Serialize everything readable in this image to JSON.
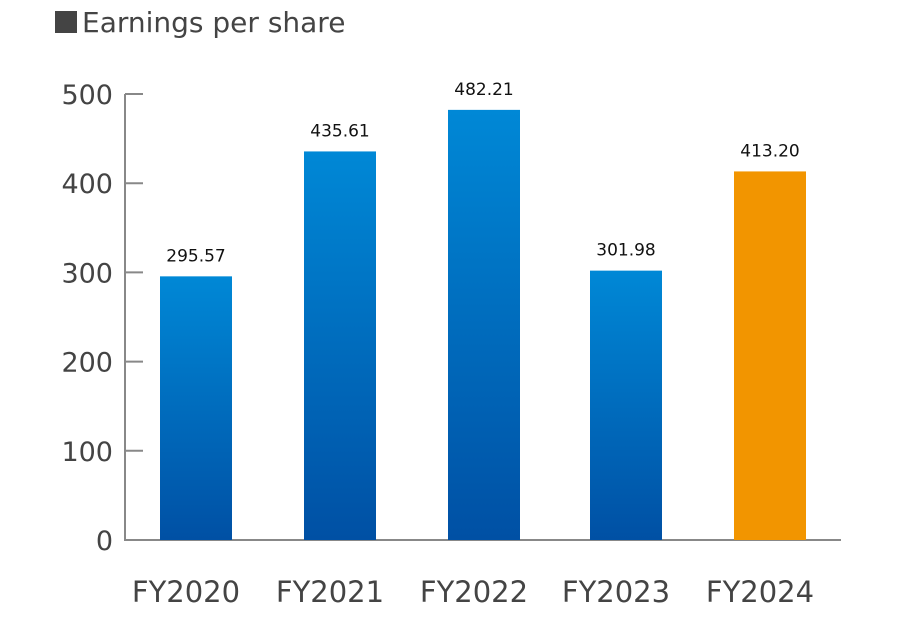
{
  "chart_data": {
    "type": "bar",
    "title": "Earnings per share",
    "categories": [
      "FY2020",
      "FY2021",
      "FY2022",
      "FY2023",
      "FY2024"
    ],
    "values": [
      295.57,
      435.61,
      482.21,
      301.98,
      413.2
    ],
    "value_labels": [
      "295.57",
      "435.61",
      "482.21",
      "301.98",
      "413.20"
    ],
    "yticks": [
      0,
      100,
      200,
      300,
      400,
      500
    ],
    "ylim": [
      0,
      500
    ],
    "xlabel": "",
    "ylabel": "",
    "grid": false,
    "legend": "none",
    "colors": {
      "bar_gradient_top": "#0088d6",
      "bar_gradient_bottom": "#0050a4",
      "highlight": "#f29500",
      "title_marker": "#444444",
      "axis": "#888888"
    },
    "highlight_index": 4
  }
}
